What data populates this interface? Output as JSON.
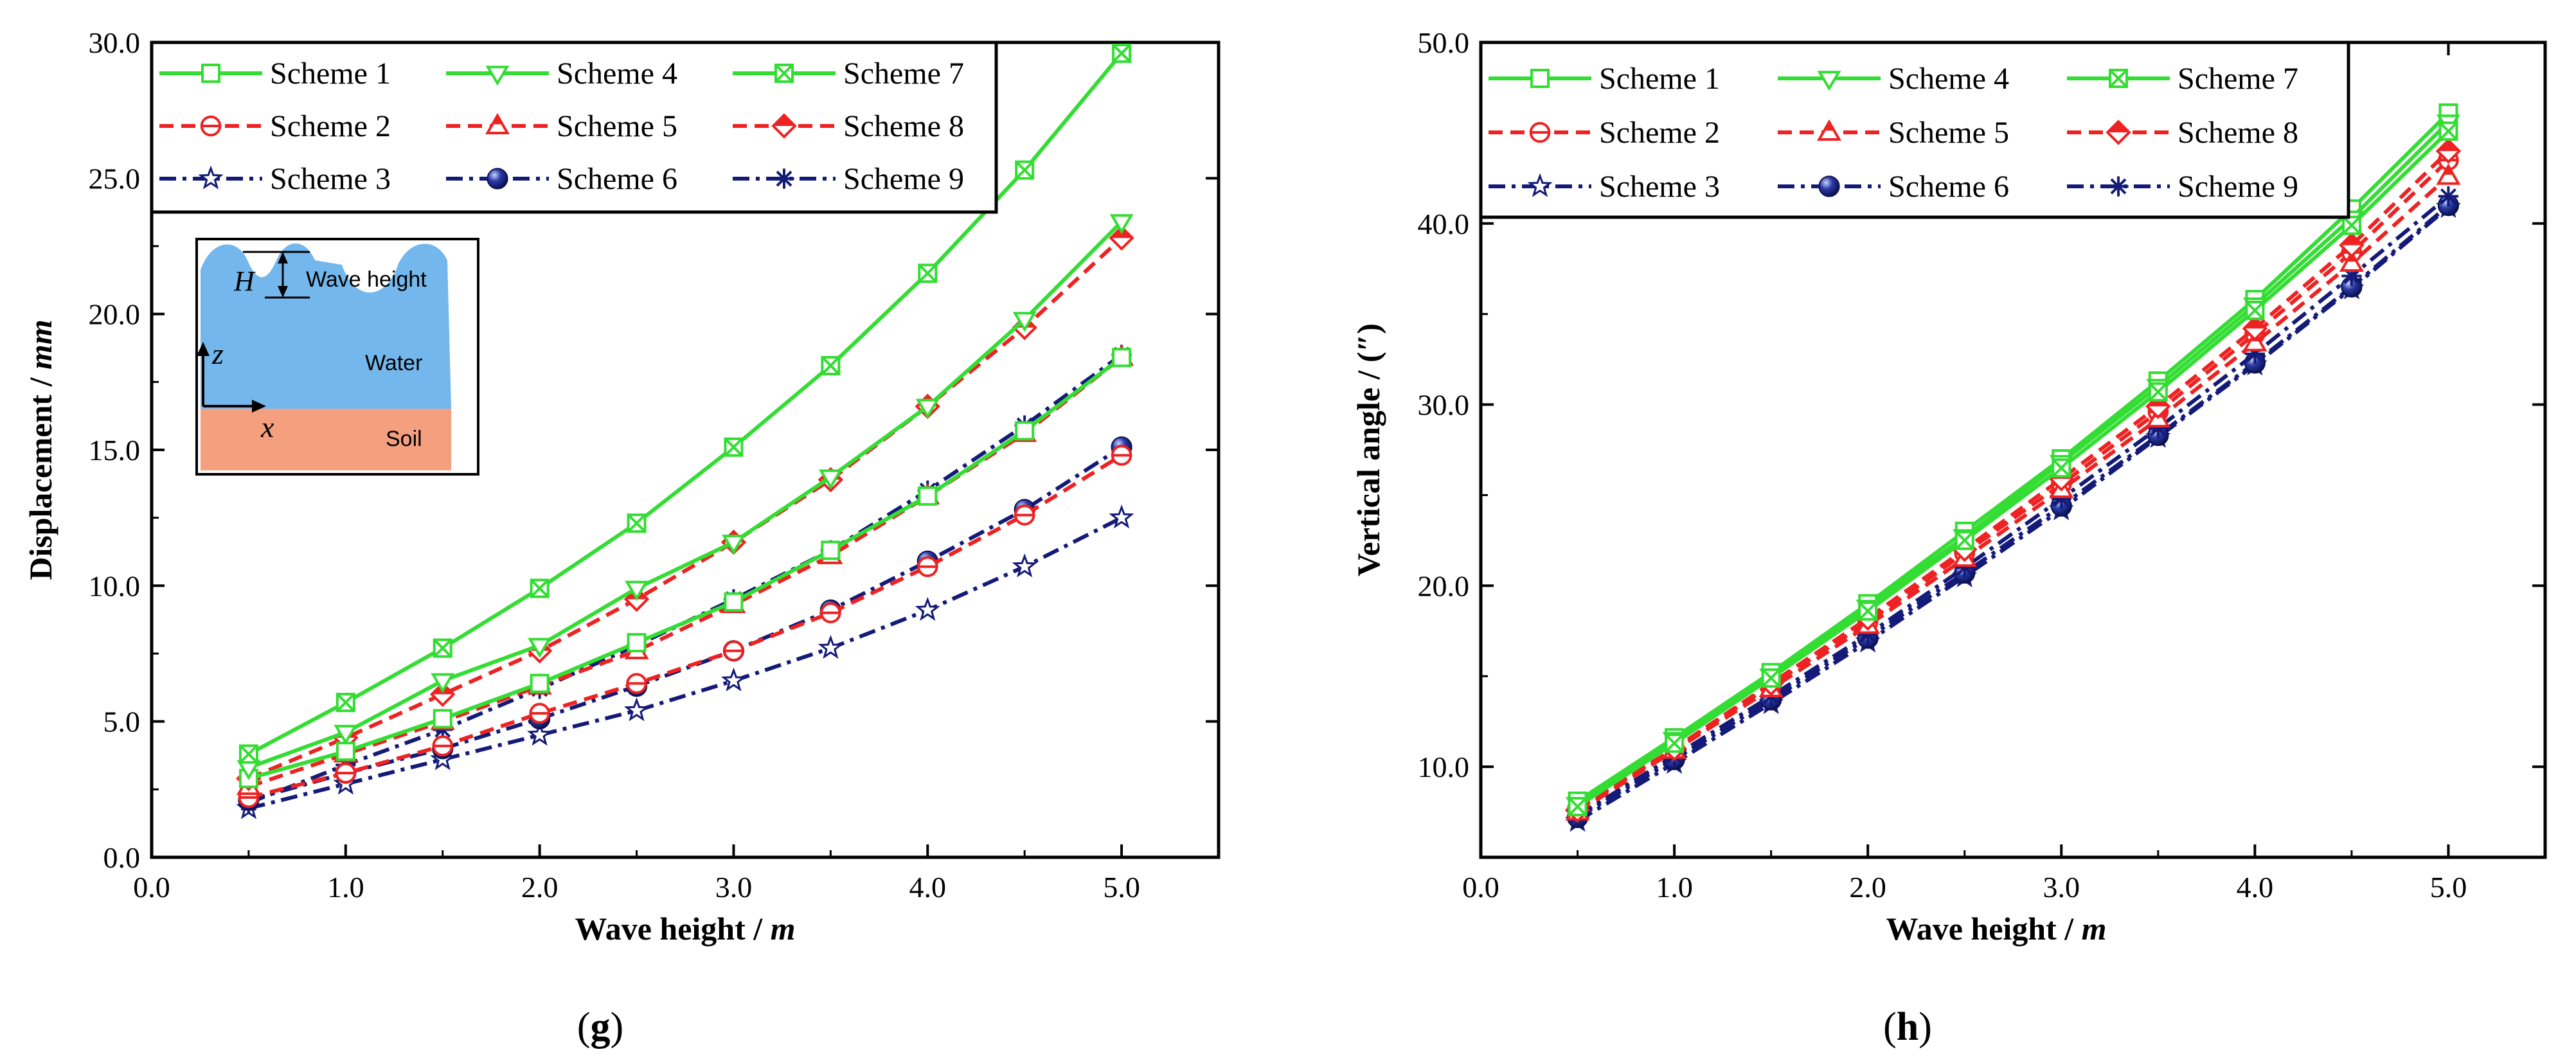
{
  "colors": {
    "green": "#33dd33",
    "red": "#ee2222",
    "navy": "#141a78",
    "water": "#74b7ec",
    "soil": "#f4a07f"
  },
  "legend_entries": [
    {
      "name": "Scheme 1",
      "color": "green",
      "dash": "solid",
      "marker": "open-square"
    },
    {
      "name": "Scheme 4",
      "color": "green",
      "dash": "solid",
      "marker": "open-triangle-down"
    },
    {
      "name": "Scheme 7",
      "color": "green",
      "dash": "solid",
      "marker": "x-square"
    },
    {
      "name": "Scheme 2",
      "color": "red",
      "dash": "dash",
      "marker": "open-circle"
    },
    {
      "name": "Scheme 5",
      "color": "red",
      "dash": "dash",
      "marker": "half-triangle"
    },
    {
      "name": "Scheme 8",
      "color": "red",
      "dash": "dash",
      "marker": "half-diamond"
    },
    {
      "name": "Scheme 3",
      "color": "navy",
      "dash": "dashdot",
      "marker": "open-star"
    },
    {
      "name": "Scheme 6",
      "color": "navy",
      "dash": "dashdot",
      "marker": "sphere"
    },
    {
      "name": "Scheme 9",
      "color": "navy",
      "dash": "dashdot",
      "marker": "asterisk"
    }
  ],
  "inset": {
    "H": "H",
    "wave_height": "Wave height",
    "z": "z",
    "x": "x",
    "water": "Water",
    "soil": "Soil"
  },
  "chart_data": [
    {
      "panel_label": "g",
      "type": "line",
      "title": "",
      "xlabel": {
        "text": "Wave height / ",
        "unit": "m"
      },
      "ylabel": {
        "text": "Displacement / ",
        "unit": "mm"
      },
      "xlim": [
        0,
        5.5
      ],
      "ylim": [
        0,
        30
      ],
      "xticks": [
        0,
        1,
        2,
        3,
        4,
        5
      ],
      "yticks": [
        0,
        5,
        10,
        15,
        20,
        25,
        30
      ],
      "xtick_labels": [
        "0.0",
        "1.0",
        "2.0",
        "3.0",
        "4.0",
        "5.0"
      ],
      "ytick_labels": [
        "0.0",
        "5.0",
        "10.0",
        "15.0",
        "20.0",
        "25.0",
        "30.0"
      ],
      "x": [
        0.5,
        1.0,
        1.5,
        2.0,
        2.5,
        3.0,
        3.5,
        4.0,
        4.5,
        5.0
      ],
      "series": [
        {
          "name": "Scheme 1",
          "values": [
            2.9,
            3.9,
            5.1,
            6.4,
            7.9,
            9.4,
            11.3,
            13.3,
            15.7,
            18.4
          ]
        },
        {
          "name": "Scheme 4",
          "values": [
            3.3,
            4.6,
            6.5,
            7.8,
            9.9,
            11.6,
            14.0,
            16.6,
            19.8,
            23.4
          ]
        },
        {
          "name": "Scheme 7",
          "values": [
            3.8,
            5.7,
            7.7,
            9.9,
            12.3,
            15.1,
            18.1,
            21.5,
            25.3,
            29.6
          ]
        },
        {
          "name": "Scheme 2",
          "values": [
            2.2,
            3.1,
            4.1,
            5.3,
            6.4,
            7.6,
            9.0,
            10.7,
            12.6,
            14.8
          ]
        },
        {
          "name": "Scheme 5",
          "values": [
            2.6,
            3.8,
            5.0,
            6.3,
            7.6,
            9.3,
            11.1,
            13.3,
            15.6,
            18.4
          ]
        },
        {
          "name": "Scheme 8",
          "values": [
            2.9,
            4.4,
            6.0,
            7.6,
            9.5,
            11.6,
            13.9,
            16.6,
            19.5,
            22.8
          ]
        },
        {
          "name": "Scheme 3",
          "values": [
            1.8,
            2.7,
            3.6,
            4.5,
            5.4,
            6.5,
            7.7,
            9.1,
            10.7,
            12.5
          ]
        },
        {
          "name": "Scheme 6",
          "values": [
            2.1,
            3.1,
            4.0,
            5.1,
            6.3,
            7.6,
            9.1,
            10.9,
            12.8,
            15.1
          ]
        },
        {
          "name": "Scheme 9",
          "values": [
            2.0,
            3.4,
            4.7,
            6.2,
            7.8,
            9.5,
            11.3,
            13.5,
            15.9,
            18.5
          ]
        }
      ]
    },
    {
      "panel_label": "h",
      "type": "line",
      "title": "",
      "xlabel": {
        "text": "Wave height / ",
        "unit": "m"
      },
      "ylabel": {
        "text": "Vertical angle / (″)",
        "unit": ""
      },
      "xlim": [
        0,
        5.5
      ],
      "ylim": [
        5,
        50
      ],
      "xticks": [
        0,
        1,
        2,
        3,
        4,
        5
      ],
      "yticks": [
        10,
        20,
        30,
        40,
        50
      ],
      "xtick_labels": [
        "0.0",
        "1.0",
        "2.0",
        "3.0",
        "4.0",
        "5.0"
      ],
      "ytick_labels": [
        "10.0",
        "20.0",
        "30.0",
        "40.0",
        "50.0"
      ],
      "x": [
        0.5,
        1.0,
        1.5,
        2.0,
        2.5,
        3.0,
        3.5,
        4.0,
        4.5,
        5.0
      ],
      "series": [
        {
          "name": "Scheme 1",
          "values": [
            8.1,
            11.6,
            15.2,
            19.0,
            23.0,
            27.0,
            31.3,
            35.8,
            40.8,
            46.1
          ]
        },
        {
          "name": "Scheme 4",
          "values": [
            7.9,
            11.5,
            15.0,
            18.8,
            22.7,
            26.8,
            31.0,
            35.5,
            40.3,
            45.6
          ]
        },
        {
          "name": "Scheme 7",
          "values": [
            7.8,
            11.3,
            14.9,
            18.6,
            22.5,
            26.5,
            30.7,
            35.2,
            39.9,
            45.1
          ]
        },
        {
          "name": "Scheme 2",
          "values": [
            7.7,
            11.0,
            14.5,
            18.0,
            21.8,
            25.6,
            29.6,
            33.9,
            38.4,
            43.5
          ]
        },
        {
          "name": "Scheme 5",
          "values": [
            7.5,
            10.9,
            14.3,
            17.8,
            21.5,
            25.3,
            29.2,
            33.4,
            37.8,
            42.6
          ]
        },
        {
          "name": "Scheme 8",
          "values": [
            7.6,
            11.0,
            14.6,
            18.2,
            22.0,
            25.9,
            29.9,
            34.2,
            38.8,
            44.0
          ]
        },
        {
          "name": "Scheme 3",
          "values": [
            7.0,
            10.2,
            13.5,
            16.9,
            20.5,
            24.2,
            28.2,
            32.2,
            36.4,
            40.9
          ]
        },
        {
          "name": "Scheme 6",
          "values": [
            7.2,
            10.4,
            13.7,
            17.1,
            20.7,
            24.4,
            28.3,
            32.3,
            36.5,
            41.0
          ]
        },
        {
          "name": "Scheme 9",
          "values": [
            7.3,
            10.6,
            13.9,
            17.3,
            21.0,
            24.8,
            28.7,
            32.8,
            37.1,
            41.5
          ]
        }
      ]
    }
  ]
}
